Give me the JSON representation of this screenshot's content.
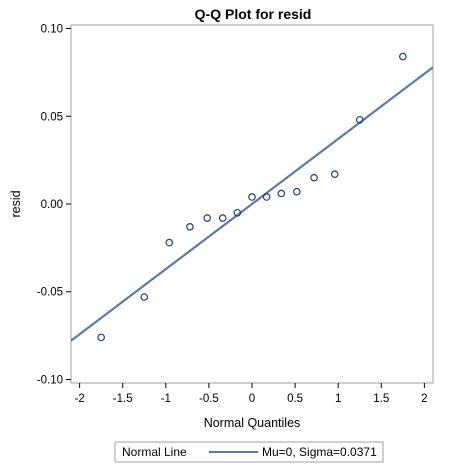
{
  "chart_data": {
    "type": "scatter",
    "title": "Q-Q Plot for resid",
    "xlabel": "Normal Quantiles",
    "ylabel": "resid",
    "xlim": [
      -2.1,
      2.1
    ],
    "ylim": [
      -0.102,
      0.102
    ],
    "xticks": [
      -2,
      -1.5,
      -1,
      -0.5,
      0,
      0.5,
      1,
      1.5,
      2
    ],
    "xtick_labels": [
      "-2",
      "-1.5",
      "-1",
      "-0.5",
      "0",
      "0.5",
      "1",
      "1.5",
      "2"
    ],
    "yticks": [
      -0.1,
      -0.05,
      0.0,
      0.05,
      0.1
    ],
    "ytick_labels": [
      "-0.10",
      "-0.05",
      "0.00",
      "0.05",
      "0.10"
    ],
    "points": {
      "x": [
        -1.75,
        -1.25,
        -0.96,
        -0.72,
        -0.52,
        -0.34,
        -0.17,
        0.0,
        0.17,
        0.34,
        0.52,
        0.72,
        0.96,
        1.25,
        1.75
      ],
      "y": [
        -0.076,
        -0.053,
        -0.022,
        -0.013,
        -0.008,
        -0.008,
        -0.005,
        0.004,
        0.004,
        0.006,
        0.007,
        0.015,
        0.017,
        0.048,
        0.084
      ]
    },
    "reference_line": {
      "mu": 0,
      "sigma": 0.0371
    },
    "grid": false,
    "legend": {
      "placement": "bottom",
      "title": "Normal Line",
      "entries": [
        {
          "label": "Mu=0, Sigma=0.0371"
        }
      ]
    },
    "colors": {
      "marker": "#1f3f7a",
      "line": "#5f7a9e",
      "frame": "#a0a0a0"
    }
  }
}
